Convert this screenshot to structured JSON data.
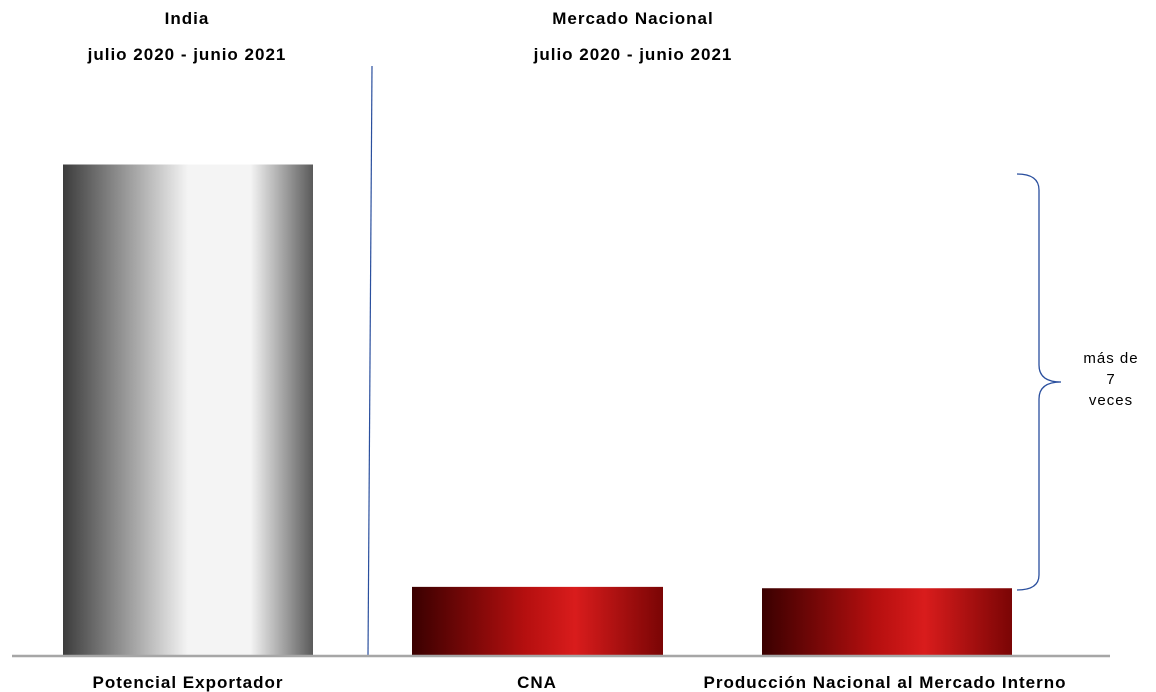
{
  "chart_data": {
    "type": "bar",
    "title": "",
    "xlabel": "",
    "ylabel": "",
    "ylim": [
      0,
      8
    ],
    "grid": false,
    "legend": "none",
    "categories": [
      "Potencial Exportador",
      "CNA",
      "Producción Nacional al Mercado Interno"
    ],
    "values": [
      7.2,
      1.0,
      0.98
    ],
    "groups": [
      {
        "label_line1": "India",
        "label_line2": "julio 2020 - junio 2021"
      },
      {
        "label_line1": "Mercado Nacional",
        "label_line2": "julio 2020 - junio 2021"
      }
    ],
    "annotation": {
      "line1": "más de",
      "line2": "7",
      "line3": "veces"
    },
    "colors": {
      "potencial": [
        "#3c3c3c",
        "#f4f4f4"
      ],
      "mercado": [
        "#3a0000",
        "#d91c1c"
      ],
      "separator": "#2a4f9e",
      "brace": "#2a4f9e",
      "baseline": "#a6a6a6"
    }
  }
}
